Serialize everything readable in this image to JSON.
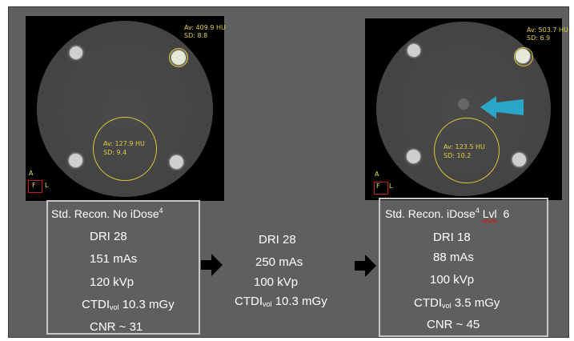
{
  "left_scan": {
    "roi_small": {
      "av": "Av: 409.9  HU",
      "sd": "SD: 8.8"
    },
    "roi_large": {
      "av": "Av: 127.9 HU",
      "sd": "SD: 9.4"
    },
    "orient": {
      "a": "A",
      "f": "F",
      "l": "L"
    }
  },
  "right_scan": {
    "roi_small": {
      "av": "Av: 503.7 HU",
      "sd": "SD: 6.9"
    },
    "roi_large": {
      "av": "Av: 123.5 HU",
      "sd": "SD: 10.2"
    },
    "orient": {
      "a": "A",
      "f": "F",
      "l": "L"
    },
    "arrow_color": "#2aa7c6"
  },
  "left_box": {
    "title": "Std. Recon. No iDose",
    "title_sup": "4",
    "dri": "DRI 28",
    "mas": "151 mAs",
    "kvp": "120 kVp",
    "ctdi_main": "CTDI",
    "ctdi_sub": "vol",
    "ctdi_val": "10.3 mGy",
    "cnr": "CNR ~ 31"
  },
  "middle": {
    "dri": "DRI 28",
    "mas": "250 mAs",
    "kvp": "100 kVp",
    "ctdi_main": "CTDI",
    "ctdi_sub": "vol",
    "ctdi_val": "10.3 mGy"
  },
  "right_box": {
    "title_a": "Std. Recon. iDose",
    "title_sup": "4",
    "title_lvl": "Lvl",
    "title_b": "6",
    "dri": "DRI 18",
    "mas": "88 mAs",
    "kvp": "100 kVp",
    "ctdi_main": "CTDI",
    "ctdi_sub": "vol",
    "ctdi_val": "3.5 mGy",
    "cnr": "CNR ~ 45"
  },
  "colors": {
    "background": "#5f5f5f",
    "roi": "#d8c838",
    "box_border": "#c8c8c8"
  }
}
